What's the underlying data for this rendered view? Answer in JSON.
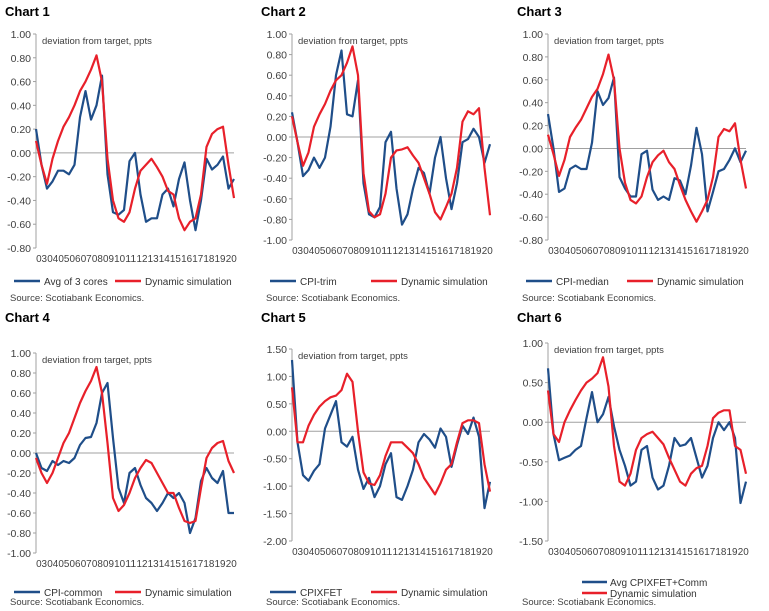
{
  "colors": {
    "actual": "#1f4e89",
    "simulation": "#e8202a",
    "axis": "#a0a0a0"
  },
  "source": "Source: Scotiabank Economics.",
  "chart_data": [
    {
      "type": "line",
      "title": "Chart 1",
      "annotation": "deviation from target, ppts",
      "ylim": [
        -0.8,
        1.0
      ],
      "yticks": [
        "1.00",
        "0.80",
        "0.60",
        "0.40",
        "0.20",
        "0.00",
        "-0.20",
        "-0.40",
        "-0.60",
        "-0.80"
      ],
      "ytick_values": [
        1.0,
        0.8,
        0.6,
        0.4,
        0.2,
        0.0,
        -0.2,
        -0.4,
        -0.6,
        -0.8
      ],
      "x_range": [
        2003,
        2020.75
      ],
      "xticks": [
        "03",
        "04",
        "05",
        "06",
        "07",
        "08",
        "09",
        "10",
        "11",
        "12",
        "13",
        "14",
        "15",
        "16",
        "17",
        "18",
        "19",
        "20"
      ],
      "legend_layout": "row",
      "series": [
        {
          "name": "Avg of 3 cores",
          "values": [
            0.2,
            -0.1,
            -0.3,
            -0.24,
            -0.15,
            -0.15,
            -0.18,
            -0.1,
            0.3,
            0.52,
            0.28,
            0.4,
            0.65,
            -0.18,
            -0.5,
            -0.52,
            -0.48,
            -0.07,
            0.0,
            -0.35,
            -0.58,
            -0.55,
            -0.55,
            -0.35,
            -0.3,
            -0.45,
            -0.22,
            -0.08,
            -0.4,
            -0.65,
            -0.4,
            -0.05,
            -0.14,
            -0.1,
            -0.03,
            -0.3,
            -0.22
          ]
        },
        {
          "name": "Dynamic simulation",
          "values": [
            0.1,
            -0.1,
            -0.26,
            -0.05,
            0.1,
            0.22,
            0.3,
            0.4,
            0.52,
            0.6,
            0.7,
            0.82,
            0.6,
            -0.05,
            -0.4,
            -0.55,
            -0.58,
            -0.5,
            -0.3,
            -0.15,
            -0.1,
            -0.05,
            -0.12,
            -0.2,
            -0.32,
            -0.35,
            -0.55,
            -0.65,
            -0.58,
            -0.55,
            -0.35,
            0.05,
            0.16,
            0.2,
            0.22,
            -0.1,
            -0.38
          ]
        }
      ]
    },
    {
      "type": "line",
      "title": "Chart 2",
      "annotation": "deviation from target, ppts",
      "ylim": [
        -1.0,
        1.0
      ],
      "yticks": [
        "1.00",
        "0.80",
        "0.60",
        "0.40",
        "0.20",
        "0.00",
        "-0.20",
        "-0.40",
        "-0.60",
        "-0.80",
        "-1.00"
      ],
      "ytick_values": [
        1.0,
        0.8,
        0.6,
        0.4,
        0.2,
        0.0,
        -0.2,
        -0.4,
        -0.6,
        -0.8,
        -1.0
      ],
      "x_range": [
        2003,
        2020.75
      ],
      "xticks": [
        "03",
        "04",
        "05",
        "06",
        "07",
        "08",
        "09",
        "10",
        "11",
        "12",
        "13",
        "14",
        "15",
        "16",
        "17",
        "18",
        "19",
        "20"
      ],
      "legend_layout": "row",
      "series": [
        {
          "name": "CPI-trim",
          "values": [
            0.24,
            -0.05,
            -0.38,
            -0.32,
            -0.2,
            -0.3,
            -0.2,
            0.1,
            0.6,
            0.84,
            0.22,
            0.2,
            0.55,
            -0.45,
            -0.75,
            -0.78,
            -0.68,
            -0.05,
            0.05,
            -0.5,
            -0.85,
            -0.75,
            -0.5,
            -0.3,
            -0.35,
            -0.55,
            -0.2,
            0.0,
            -0.4,
            -0.7,
            -0.45,
            -0.05,
            -0.02,
            0.08,
            0.0,
            -0.25,
            -0.07
          ]
        },
        {
          "name": "Dynamic simulation",
          "values": [
            0.2,
            -0.05,
            -0.28,
            -0.15,
            0.1,
            0.22,
            0.32,
            0.45,
            0.55,
            0.6,
            0.72,
            0.88,
            0.6,
            -0.35,
            -0.72,
            -0.78,
            -0.75,
            -0.55,
            -0.2,
            -0.13,
            -0.12,
            -0.1,
            -0.18,
            -0.25,
            -0.4,
            -0.55,
            -0.73,
            -0.8,
            -0.68,
            -0.55,
            -0.3,
            0.15,
            0.25,
            0.22,
            0.28,
            -0.3,
            -0.76
          ]
        }
      ]
    },
    {
      "type": "line",
      "title": "Chart 3",
      "annotation": "deviation from target, ppts",
      "ylim": [
        -0.8,
        1.0
      ],
      "yticks": [
        "1.00",
        "0.80",
        "0.60",
        "0.40",
        "0.20",
        "0.00",
        "-0.20",
        "-0.40",
        "-0.60",
        "-0.80"
      ],
      "ytick_values": [
        1.0,
        0.8,
        0.6,
        0.4,
        0.2,
        0.0,
        -0.2,
        -0.4,
        -0.6,
        -0.8
      ],
      "x_range": [
        2003,
        2020.75
      ],
      "xticks": [
        "03",
        "04",
        "05",
        "06",
        "07",
        "08",
        "09",
        "10",
        "11",
        "12",
        "13",
        "14",
        "15",
        "16",
        "17",
        "18",
        "19",
        "20"
      ],
      "legend_layout": "row",
      "series": [
        {
          "name": "CPI-median",
          "values": [
            0.3,
            0.0,
            -0.38,
            -0.35,
            -0.18,
            -0.15,
            -0.18,
            -0.18,
            0.05,
            0.5,
            0.38,
            0.44,
            0.62,
            -0.25,
            -0.35,
            -0.42,
            -0.42,
            -0.05,
            -0.02,
            -0.36,
            -0.45,
            -0.42,
            -0.45,
            -0.26,
            -0.28,
            -0.4,
            -0.15,
            0.18,
            -0.05,
            -0.55,
            -0.38,
            -0.2,
            -0.18,
            -0.1,
            0.0,
            -0.12,
            -0.02
          ]
        },
        {
          "name": "Dynamic simulation",
          "values": [
            0.12,
            -0.05,
            -0.24,
            -0.1,
            0.1,
            0.18,
            0.25,
            0.35,
            0.45,
            0.52,
            0.65,
            0.82,
            0.6,
            0.0,
            -0.3,
            -0.45,
            -0.48,
            -0.42,
            -0.25,
            -0.12,
            -0.06,
            -0.02,
            -0.12,
            -0.18,
            -0.32,
            -0.45,
            -0.55,
            -0.64,
            -0.55,
            -0.45,
            -0.25,
            0.1,
            0.17,
            0.15,
            0.22,
            -0.1,
            -0.35
          ]
        }
      ]
    },
    {
      "type": "line",
      "title": "Chart 4",
      "annotation": "deviation from target, ppts",
      "ylim": [
        -1.0,
        1.0
      ],
      "yticks": [
        "1.00",
        "0.80",
        "0.60",
        "0.40",
        "0.20",
        "0.00",
        "-0.20",
        "-0.40",
        "-0.60",
        "-0.80",
        "-1.00"
      ],
      "ytick_values": [
        1.0,
        0.8,
        0.6,
        0.4,
        0.2,
        0.0,
        -0.2,
        -0.4,
        -0.6,
        -0.8,
        -1.0
      ],
      "x_range": [
        2003,
        2020.75
      ],
      "xticks": [
        "03",
        "04",
        "05",
        "06",
        "07",
        "08",
        "09",
        "10",
        "11",
        "12",
        "13",
        "14",
        "15",
        "16",
        "17",
        "18",
        "19",
        "20"
      ],
      "legend_layout": "row",
      "series": [
        {
          "name": "CPI-common",
          "values": [
            0.0,
            -0.15,
            -0.18,
            -0.08,
            -0.12,
            -0.08,
            -0.1,
            -0.05,
            0.08,
            0.15,
            0.16,
            0.3,
            0.6,
            0.7,
            0.15,
            -0.35,
            -0.5,
            -0.2,
            -0.15,
            -0.32,
            -0.45,
            -0.5,
            -0.58,
            -0.5,
            -0.4,
            -0.45,
            -0.4,
            -0.5,
            -0.8,
            -0.65,
            -0.28,
            -0.15,
            -0.25,
            -0.3,
            -0.18,
            -0.6,
            -0.6
          ]
        },
        {
          "name": "Dynamic simulation",
          "values": [
            -0.05,
            -0.2,
            -0.3,
            -0.2,
            -0.05,
            0.1,
            0.2,
            0.35,
            0.5,
            0.62,
            0.72,
            0.86,
            0.6,
            0.1,
            -0.45,
            -0.58,
            -0.52,
            -0.4,
            -0.25,
            -0.15,
            -0.07,
            -0.1,
            -0.2,
            -0.3,
            -0.4,
            -0.4,
            -0.55,
            -0.68,
            -0.7,
            -0.68,
            -0.35,
            -0.05,
            0.05,
            0.1,
            0.12,
            -0.08,
            -0.2
          ]
        }
      ]
    },
    {
      "type": "line",
      "title": "Chart 5",
      "annotation": "deviation from target, ppts",
      "ylim": [
        -2.0,
        1.5
      ],
      "yticks": [
        "1.50",
        "1.00",
        "0.50",
        "0.00",
        "-0.50",
        "-1.00",
        "-1.50",
        "-2.00"
      ],
      "ytick_values": [
        1.5,
        1.0,
        0.5,
        0.0,
        -0.5,
        -1.0,
        -1.5,
        -2.0
      ],
      "x_range": [
        2003,
        2020.75
      ],
      "xticks": [
        "03",
        "04",
        "05",
        "06",
        "07",
        "08",
        "09",
        "10",
        "11",
        "12",
        "13",
        "14",
        "15",
        "16",
        "17",
        "18",
        "19",
        "20"
      ],
      "legend_layout": "row",
      "series": [
        {
          "name": "CPIXFET",
          "values": [
            1.3,
            -0.2,
            -0.8,
            -0.9,
            -0.72,
            -0.6,
            0.05,
            0.3,
            0.55,
            -0.2,
            -0.28,
            -0.1,
            -0.7,
            -1.05,
            -0.85,
            -1.2,
            -1.0,
            -0.6,
            -0.4,
            -1.2,
            -1.25,
            -1.0,
            -0.7,
            -0.2,
            -0.05,
            -0.15,
            -0.3,
            0.05,
            -0.1,
            -0.65,
            -0.25,
            0.1,
            -0.05,
            0.25,
            -0.1,
            -1.4,
            -0.92
          ]
        },
        {
          "name": "Dynamic simulation",
          "values": [
            0.8,
            -0.2,
            -0.2,
            0.1,
            0.3,
            0.45,
            0.55,
            0.62,
            0.65,
            0.75,
            1.05,
            0.9,
            0.0,
            -0.75,
            -0.95,
            -0.98,
            -0.8,
            -0.45,
            -0.2,
            -0.2,
            -0.2,
            -0.3,
            -0.4,
            -0.6,
            -0.85,
            -1.0,
            -1.15,
            -0.95,
            -0.7,
            -0.6,
            -0.2,
            0.15,
            0.2,
            0.2,
            0.15,
            -0.6,
            -1.1
          ]
        }
      ]
    },
    {
      "type": "line",
      "title": "Chart 6",
      "annotation": "deviation from target, ppts",
      "ylim": [
        -1.5,
        1.0
      ],
      "yticks": [
        "1.00",
        "0.50",
        "0.00",
        "-0.50",
        "-1.00",
        "-1.50"
      ],
      "ytick_values": [
        1.0,
        0.5,
        0.0,
        -0.5,
        -1.0,
        -1.5
      ],
      "x_range": [
        2003,
        2020.75
      ],
      "xticks": [
        "03",
        "04",
        "05",
        "06",
        "07",
        "08",
        "09",
        "10",
        "11",
        "12",
        "13",
        "14",
        "15",
        "16",
        "17",
        "18",
        "19",
        "20"
      ],
      "legend_layout": "stacked",
      "series": [
        {
          "name": "Avg CPIXFET+Comm",
          "values": [
            0.68,
            -0.15,
            -0.48,
            -0.45,
            -0.42,
            -0.35,
            -0.3,
            0.05,
            0.38,
            0.0,
            0.1,
            0.32,
            -0.05,
            -0.35,
            -0.55,
            -0.8,
            -0.75,
            -0.35,
            -0.3,
            -0.7,
            -0.85,
            -0.8,
            -0.55,
            -0.2,
            -0.3,
            -0.28,
            -0.2,
            -0.45,
            -0.7,
            -0.55,
            -0.2,
            0.0,
            -0.1,
            0.0,
            -0.2,
            -1.02,
            -0.75
          ]
        },
        {
          "name": "Dynamic simulation",
          "values": [
            0.4,
            -0.15,
            -0.25,
            0.0,
            0.15,
            0.28,
            0.4,
            0.5,
            0.55,
            0.62,
            0.82,
            0.45,
            -0.3,
            -0.75,
            -0.8,
            -0.65,
            -0.35,
            -0.2,
            -0.15,
            -0.12,
            -0.2,
            -0.28,
            -0.45,
            -0.6,
            -0.75,
            -0.8,
            -0.65,
            -0.58,
            -0.55,
            -0.3,
            0.05,
            0.12,
            0.15,
            0.15,
            -0.3,
            -0.35,
            -0.65
          ]
        }
      ]
    }
  ]
}
